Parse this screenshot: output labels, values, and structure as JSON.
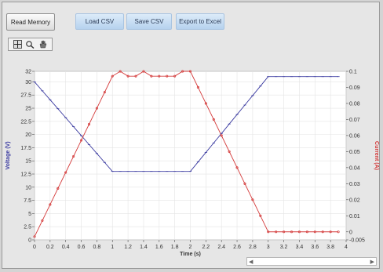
{
  "toolbar": {
    "read_label": "Read Memory",
    "load_label": "Load CSV",
    "save_label": "Save CSV",
    "export_label": "Export to Excel"
  },
  "colors": {
    "voltage": "#3a3aa0",
    "current": "#d43a3a",
    "button_blue": "#c6dcf3"
  },
  "palette_icons": [
    "crosshair-icon",
    "zoom-icon",
    "pan-hand-icon"
  ],
  "chart_data": {
    "type": "line",
    "xlabel": "Time (s)",
    "ylabel_left": "Voltage (V)",
    "ylabel_right": "Current (A)",
    "xlim": [
      0,
      4
    ],
    "ylim_left": [
      0,
      32
    ],
    "ylim_right": [
      -0.005,
      0.1
    ],
    "x_ticks": [
      "0",
      "0.2",
      "0.4",
      "0.6",
      "0.8",
      "1",
      "1.2",
      "1.4",
      "1.6",
      "1.8",
      "2",
      "2.2",
      "2.4",
      "2.6",
      "2.8",
      "3",
      "3.2",
      "3.4",
      "3.6",
      "3.8",
      "4"
    ],
    "y_left_ticks": [
      "0",
      "2.5",
      "5",
      "7.5",
      "10",
      "12.5",
      "15",
      "17.5",
      "20",
      "22.5",
      "25",
      "27.5",
      "30",
      "32"
    ],
    "y_right_ticks": [
      "-0.005",
      "0",
      "0.01",
      "0.02",
      "0.03",
      "0.04",
      "0.05",
      "0.06",
      "0.07",
      "0.08",
      "0.09",
      "0.1"
    ],
    "grid": true,
    "series": [
      {
        "name": "Voltage (V)",
        "axis": "left",
        "x": [
          0,
          0.1,
          0.2,
          0.3,
          0.4,
          0.5,
          0.6,
          0.7,
          0.8,
          0.9,
          1.0,
          1.1,
          1.2,
          1.3,
          1.4,
          1.5,
          1.6,
          1.7,
          1.8,
          1.9,
          2.0,
          2.1,
          2.2,
          2.3,
          2.4,
          2.5,
          2.6,
          2.7,
          2.8,
          2.9,
          3.0,
          3.1,
          3.2,
          3.3,
          3.4,
          3.5,
          3.6,
          3.7,
          3.8,
          3.9
        ],
        "values": [
          30,
          28.3,
          26.6,
          24.9,
          23.2,
          21.5,
          19.8,
          18.1,
          16.4,
          14.7,
          13,
          13,
          13,
          13,
          13,
          13,
          13,
          13,
          13,
          13,
          13,
          14.8,
          16.6,
          18.4,
          20.2,
          22,
          23.8,
          25.6,
          27.4,
          29.2,
          31,
          31,
          31,
          31,
          31,
          31,
          31,
          31,
          31,
          31
        ]
      },
      {
        "name": "Current (A)",
        "axis": "right",
        "x": [
          0,
          0.1,
          0.2,
          0.3,
          0.4,
          0.5,
          0.6,
          0.7,
          0.8,
          0.9,
          1.0,
          1.1,
          1.2,
          1.3,
          1.4,
          1.5,
          1.6,
          1.7,
          1.8,
          1.9,
          2.0,
          2.1,
          2.2,
          2.3,
          2.4,
          2.5,
          2.6,
          2.7,
          2.8,
          2.9,
          3.0,
          3.1,
          3.2,
          3.3,
          3.4,
          3.5,
          3.6,
          3.7,
          3.8,
          3.9
        ],
        "values": [
          -0.003,
          0.007,
          0.017,
          0.027,
          0.037,
          0.047,
          0.057,
          0.067,
          0.077,
          0.087,
          0.097,
          0.1,
          0.097,
          0.097,
          0.1,
          0.097,
          0.097,
          0.097,
          0.097,
          0.1,
          0.1,
          0.09,
          0.08,
          0.07,
          0.06,
          0.05,
          0.04,
          0.03,
          0.02,
          0.01,
          0,
          0,
          0,
          0,
          0,
          0,
          0,
          0,
          0,
          0
        ]
      }
    ]
  }
}
